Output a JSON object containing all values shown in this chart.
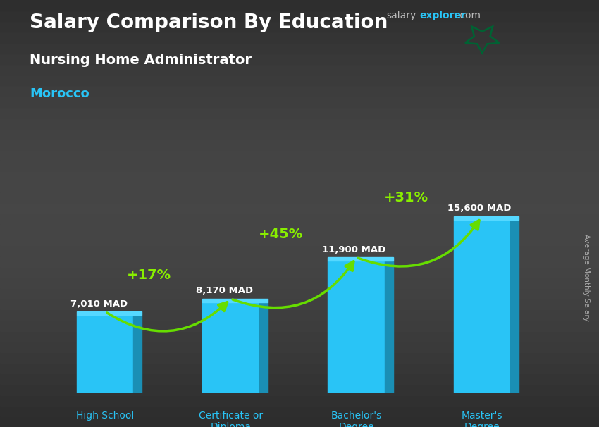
{
  "title_main": "Salary Comparison By Education",
  "title_sub": "Nursing Home Administrator",
  "title_country": "Morocco",
  "categories": [
    "High School",
    "Certificate or\nDiploma",
    "Bachelor's\nDegree",
    "Master's\nDegree"
  ],
  "values": [
    7010,
    8170,
    11900,
    15600
  ],
  "value_labels": [
    "7,010 MAD",
    "8,170 MAD",
    "11,900 MAD",
    "15,600 MAD"
  ],
  "pct_labels": [
    "+17%",
    "+45%",
    "+31%"
  ],
  "bar_color_main": "#29c4f6",
  "bar_color_dark": "#1a8fb5",
  "bar_color_top": "#55d8ff",
  "background_color": "#3a3a3a",
  "title_color": "#ffffff",
  "subtitle_color": "#ffffff",
  "country_color": "#29c4f6",
  "value_label_color": "#ffffff",
  "pct_color": "#88ee00",
  "arrow_color": "#66dd00",
  "ylabel": "Average Monthly Salary",
  "ylim": [
    0,
    20000
  ],
  "bar_width": 0.45,
  "figsize": [
    8.5,
    6.06
  ],
  "dpi": 100,
  "label_color": "#29c4f6"
}
